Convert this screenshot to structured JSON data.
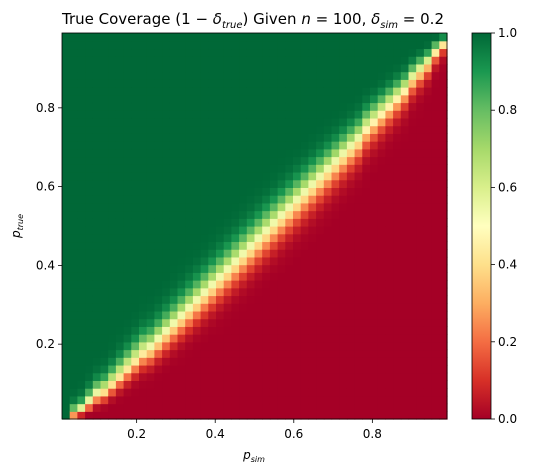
{
  "chart_data": {
    "type": "heatmap",
    "title": {
      "prefix": "True Coverage (",
      "one": "1",
      "minus": "−",
      "delta": "δ",
      "sub_true": "true",
      "middle": ") Given ",
      "n": "n",
      "eq_n": " = 100, ",
      "sub_sim": "sim",
      "eq_d": " = 0.2"
    },
    "xlabel": {
      "main": "p",
      "sub": "sim"
    },
    "ylabel": {
      "main": "p",
      "sub": "true"
    },
    "xlim": [
      0.01,
      0.99
    ],
    "ylim": [
      0.01,
      0.99
    ],
    "grid_n": 50,
    "n_trials": 100,
    "delta_sim": 0.2,
    "xticks": [
      0.2,
      0.4,
      0.6,
      0.8
    ],
    "yticks": [
      0.2,
      0.4,
      0.6,
      0.8
    ],
    "tick_labels_x": [
      "0.2",
      "0.4",
      "0.6",
      "0.8"
    ],
    "tick_labels_y": [
      "0.2",
      "0.4",
      "0.6",
      "0.8"
    ],
    "colorbar": {
      "cmap": "RdYlGn",
      "range": [
        0.0,
        1.0
      ],
      "ticks": [
        0.0,
        0.2,
        0.4,
        0.6,
        0.8,
        1.0
      ],
      "tick_labels": [
        "0.0",
        "0.2",
        "0.4",
        "0.6",
        "0.8",
        "1.0"
      ]
    },
    "grid": false
  }
}
